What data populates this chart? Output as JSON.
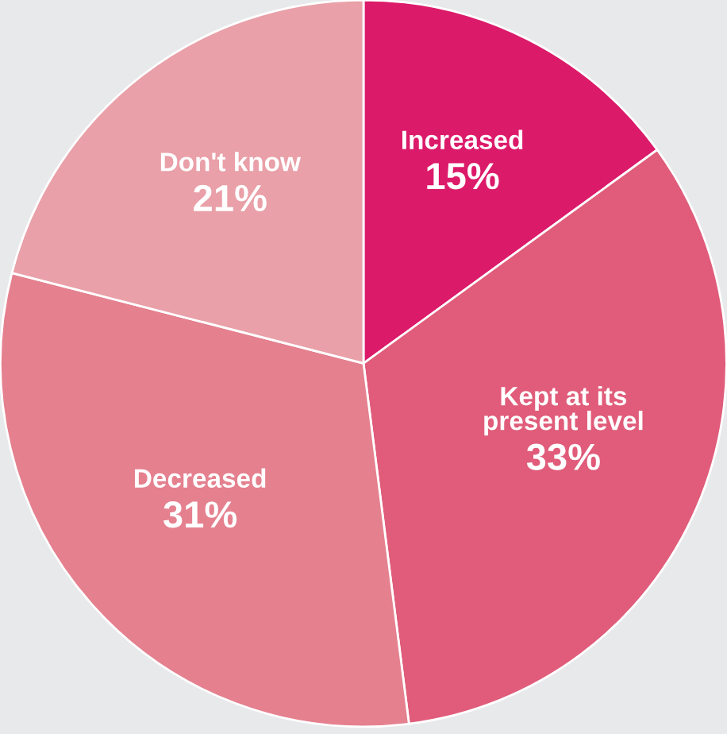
{
  "chart_data": {
    "type": "pie",
    "categories": [
      "Increased",
      "Kept at its\npresent level",
      "Decreased",
      "Don't know"
    ],
    "values": [
      15,
      33,
      31,
      21
    ],
    "colors": [
      "#dc1a6a",
      "#e05c7a",
      "#e5808f",
      "#e9a0a8"
    ],
    "value_labels": [
      "15%",
      "33%",
      "31%",
      "21%"
    ]
  }
}
